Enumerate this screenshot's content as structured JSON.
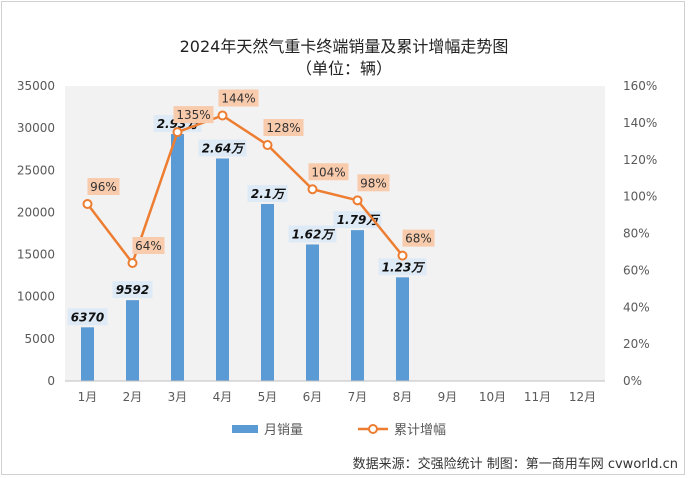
{
  "chart_data": {
    "type": "bar",
    "title": "2024年天然气重卡终端销量及累计增幅走势图",
    "subtitle": "（单位：辆）",
    "categories": [
      "1月",
      "2月",
      "3月",
      "4月",
      "5月",
      "6月",
      "7月",
      "8月",
      "9月",
      "10月",
      "11月",
      "12月"
    ],
    "series": [
      {
        "name": "月销量",
        "type": "bar",
        "axis": "left",
        "color": "#5b9bd5",
        "values": [
          6370,
          9592,
          29300,
          26400,
          21000,
          16200,
          17900,
          12300,
          null,
          null,
          null,
          null
        ],
        "labels": [
          "6370",
          "9592",
          "2.93万",
          "2.64万",
          "2.1万",
          "1.62万",
          "1.79万",
          "1.23万",
          "",
          "",
          "",
          ""
        ]
      },
      {
        "name": "累计增幅",
        "type": "line",
        "axis": "right",
        "color": "#ed7d31",
        "values": [
          96,
          64,
          135,
          144,
          128,
          104,
          98,
          68,
          null,
          null,
          null,
          null
        ],
        "labels": [
          "96%",
          "64%",
          "135%",
          "144%",
          "128%",
          "104%",
          "98%",
          "68%",
          "",
          "",
          "",
          ""
        ]
      }
    ],
    "y_left": {
      "min": 0,
      "max": 35000,
      "ticks": [
        "0",
        "5000",
        "10000",
        "15000",
        "20000",
        "25000",
        "30000",
        "35000"
      ]
    },
    "y_right": {
      "min": 0,
      "max": 160,
      "ticks": [
        "0%",
        "20%",
        "40%",
        "60%",
        "80%",
        "100%",
        "120%",
        "140%",
        "160%"
      ]
    },
    "grid": false,
    "legend": "bottom"
  },
  "footer": {
    "source": "数据来源：交强险统计  制图：第一商用车网 cvworld.cn"
  },
  "colors": {
    "plot_bg": "#f2f2f2",
    "bar": "#5b9bd5",
    "line": "#ed7d31",
    "label_bg": "#f8cbad",
    "bar_label_bg": "#deebf7"
  }
}
